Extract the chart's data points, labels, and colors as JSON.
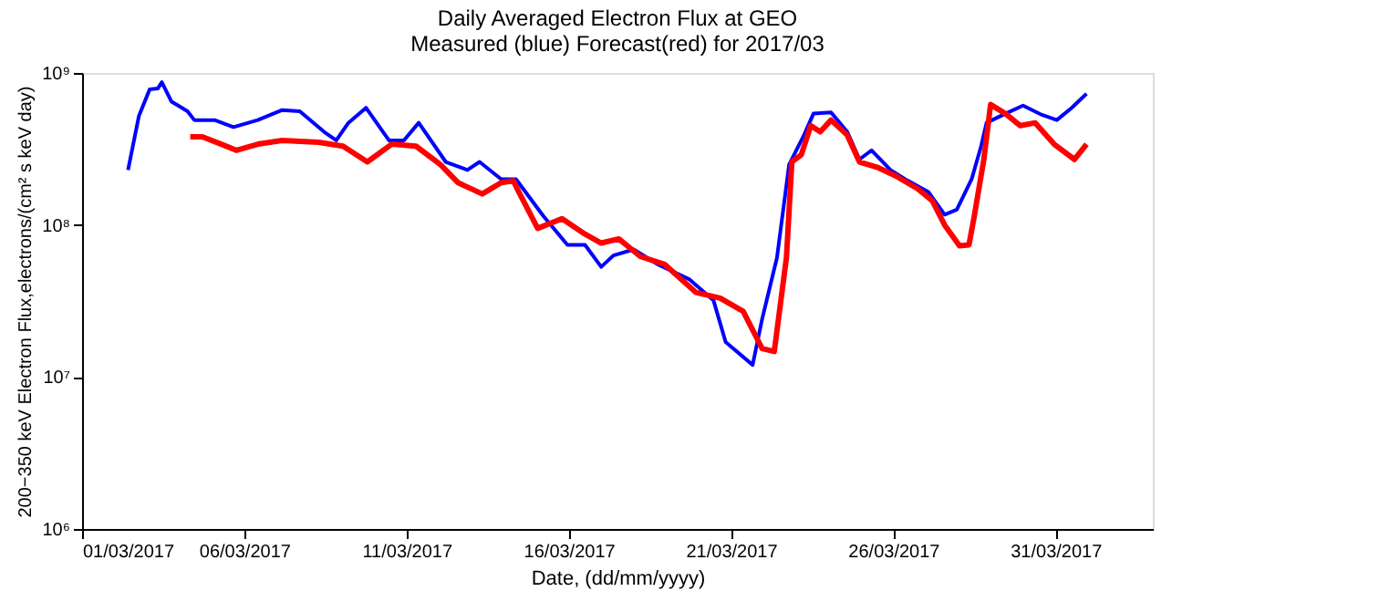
{
  "chart_data": {
    "type": "line",
    "title": "Daily Averaged Electron Flux at GEO",
    "subtitle": "Measured (blue) Forecast(red) for 2017/03",
    "xlabel": "Date, (dd/mm/yyyy)",
    "ylabel": "200−350 keV Electron Flux,electrons/(cm² s keV day)",
    "log": "y",
    "grid": false,
    "line_style": "solid",
    "xlim": [
      "2017-03-01T00:00",
      "2017-04-03T00:00"
    ],
    "xticks": [
      {
        "value": "2017-03-01T00:00",
        "label": "01/03/2017"
      },
      {
        "value": "2017-03-06T00:00",
        "label": "06/03/2017"
      },
      {
        "value": "2017-03-11T00:00",
        "label": "11/03/2017"
      },
      {
        "value": "2017-03-16T00:00",
        "label": "16/03/2017"
      },
      {
        "value": "2017-03-21T00:00",
        "label": "21/03/2017"
      },
      {
        "value": "2017-03-26T00:00",
        "label": "26/03/2017"
      },
      {
        "value": "2017-03-31T00:00",
        "label": "31/03/2017"
      }
    ],
    "ylim": [
      1000000,
      1000000000
    ],
    "yticks": [
      {
        "value": 1000000,
        "label": "10⁶"
      },
      {
        "value": 10000000,
        "label": "10⁷"
      },
      {
        "value": 100000000,
        "label": "10⁸"
      },
      {
        "value": 1000000000,
        "label": "10⁹"
      }
    ],
    "series": [
      {
        "color": "#0000ff",
        "x": [
          "2017-03-02T10:00",
          "2017-03-02T18:00",
          "2017-03-03T02:00",
          "2017-03-03T08:00",
          "2017-03-03T11:00",
          "2017-03-03T18:00",
          "2017-03-04T06:00",
          "2017-03-04T11:00",
          "2017-03-05T02:00",
          "2017-03-05T16:00",
          "2017-03-06T10:00",
          "2017-03-07T04:00",
          "2017-03-07T17:00",
          "2017-03-08T11:00",
          "2017-03-08T20:00",
          "2017-03-09T05:00",
          "2017-03-09T18:00",
          "2017-03-10T11:00",
          "2017-03-10T22:00",
          "2017-03-11T09:00",
          "2017-03-12T05:00",
          "2017-03-12T21:00",
          "2017-03-13T06:00",
          "2017-03-13T22:00",
          "2017-03-14T09:00",
          "2017-03-15T05:00",
          "2017-03-15T23:00",
          "2017-03-16T12:00",
          "2017-03-17T00:00",
          "2017-03-17T09:00",
          "2017-03-18T00:00",
          "2017-03-18T18:00",
          "2017-03-19T17:00",
          "2017-03-20T11:00",
          "2017-03-20T20:00",
          "2017-03-21T16:00",
          "2017-03-21T23:00",
          "2017-03-22T10:00",
          "2017-03-22T19:00",
          "2017-03-23T06:00",
          "2017-03-23T13:00",
          "2017-03-24T02:00",
          "2017-03-24T14:00",
          "2017-03-24T23:00",
          "2017-03-25T08:00",
          "2017-03-25T22:00",
          "2017-03-26T11:00",
          "2017-03-27T02:00",
          "2017-03-27T14:00",
          "2017-03-27T23:00",
          "2017-03-28T10:00",
          "2017-03-28T17:00",
          "2017-03-28T21:00",
          "2017-03-29T11:00",
          "2017-03-30T00:00",
          "2017-03-30T14:00",
          "2017-03-31T01:00",
          "2017-03-31T12:00",
          "2017-03-31T23:00"
        ],
        "values": [
          230000000.0,
          520000000.0,
          780000000.0,
          790000000.0,
          870000000.0,
          650000000.0,
          560000000.0,
          490000000.0,
          490000000.0,
          440000000.0,
          490000000.0,
          570000000.0,
          560000000.0,
          410000000.0,
          360000000.0,
          470000000.0,
          590000000.0,
          360000000.0,
          360000000.0,
          470000000.0,
          260000000.0,
          230000000.0,
          260000000.0,
          200000000.0,
          200000000.0,
          115000000.0,
          74000000.0,
          74000000.0,
          53000000.0,
          63000000.0,
          69000000.0,
          55000000.0,
          44000000.0,
          32000000.0,
          17000000.0,
          12000000.0,
          24000000.0,
          61000000.0,
          250000000.0,
          390000000.0,
          540000000.0,
          550000000.0,
          410000000.0,
          270000000.0,
          310000000.0,
          230000000.0,
          195000000.0,
          165000000.0,
          117000000.0,
          126000000.0,
          200000000.0,
          330000000.0,
          470000000.0,
          540000000.0,
          610000000.0,
          530000000.0,
          490000000.0,
          590000000.0,
          730000000.0
        ]
      },
      {
        "color": "#ff0000",
        "x": [
          "2017-03-04T08:00",
          "2017-03-04T17:00",
          "2017-03-05T07:00",
          "2017-03-05T18:00",
          "2017-03-06T10:00",
          "2017-03-07T04:00",
          "2017-03-08T07:00",
          "2017-03-09T01:00",
          "2017-03-09T19:00",
          "2017-03-10T13:00",
          "2017-03-11T07:00",
          "2017-03-12T01:00",
          "2017-03-12T14:00",
          "2017-03-13T08:00",
          "2017-03-13T22:00",
          "2017-03-14T07:00",
          "2017-03-14T11:00",
          "2017-03-15T01:00",
          "2017-03-15T19:00",
          "2017-03-16T12:00",
          "2017-03-17T00:00",
          "2017-03-17T13:00",
          "2017-03-18T05:00",
          "2017-03-18T23:00",
          "2017-03-19T22:00",
          "2017-03-20T16:00",
          "2017-03-21T09:00",
          "2017-03-21T23:00",
          "2017-03-22T08:00",
          "2017-03-22T17:00",
          "2017-03-22T21:00",
          "2017-03-23T04:00",
          "2017-03-23T11:00",
          "2017-03-23T18:00",
          "2017-03-24T02:00",
          "2017-03-24T14:00",
          "2017-03-24T23:00",
          "2017-03-25T12:00",
          "2017-03-26T02:00",
          "2017-03-26T18:00",
          "2017-03-27T05:00",
          "2017-03-27T14:00",
          "2017-03-28T01:00",
          "2017-03-28T08:00",
          "2017-03-28T12:00",
          "2017-03-28T19:00",
          "2017-03-29T00:00",
          "2017-03-29T11:00",
          "2017-03-29T22:00",
          "2017-03-30T09:00",
          "2017-03-30T23:00",
          "2017-03-31T14:00",
          "2017-03-31T23:00"
        ],
        "values": [
          380000000.0,
          380000000.0,
          340000000.0,
          310000000.0,
          340000000.0,
          360000000.0,
          350000000.0,
          330000000.0,
          260000000.0,
          340000000.0,
          330000000.0,
          250000000.0,
          190000000.0,
          160000000.0,
          190000000.0,
          195000000.0,
          165000000.0,
          95000000.0,
          110000000.0,
          87000000.0,
          76000000.0,
          81000000.0,
          62000000.0,
          55000000.0,
          36000000.0,
          33000000.0,
          27000000.0,
          15400000.0,
          14700000.0,
          61000000.0,
          260000000.0,
          290000000.0,
          450000000.0,
          410000000.0,
          490000000.0,
          390000000.0,
          260000000.0,
          240000000.0,
          210000000.0,
          173000000.0,
          144000000.0,
          100000000.0,
          73000000.0,
          74000000.0,
          115000000.0,
          270000000.0,
          620000000.0,
          540000000.0,
          450000000.0,
          470000000.0,
          340000000.0,
          270000000.0,
          340000000.0
        ]
      }
    ]
  }
}
